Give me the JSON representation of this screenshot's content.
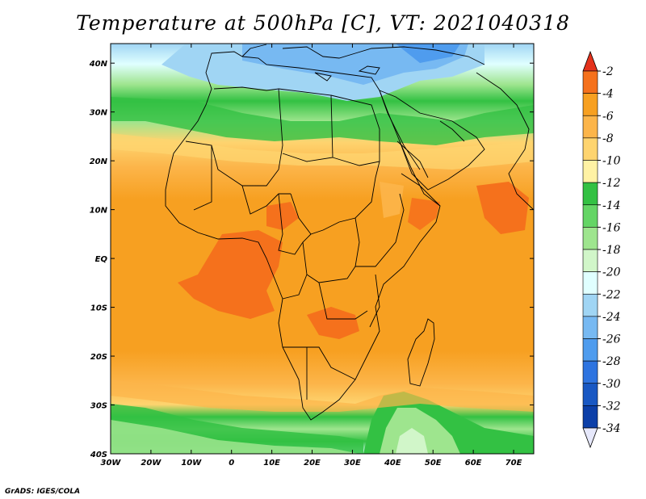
{
  "title": "Temperature at 500hPa [C], VT: 2021040318",
  "credit": "GrADS: IGES/COLA",
  "map": {
    "lon_ticks": [
      "30W",
      "20W",
      "10W",
      "0",
      "10E",
      "20E",
      "30E",
      "40E",
      "50E",
      "60E",
      "70E"
    ],
    "lat_ticks": [
      "40N",
      "30N",
      "20N",
      "10N",
      "EQ",
      "10S",
      "20S",
      "30S",
      "40S"
    ],
    "lon_range": [
      -30,
      75
    ],
    "lat_range": [
      -40,
      44
    ]
  },
  "colorbar": {
    "labels": [
      "-2",
      "-4",
      "-6",
      "-8",
      "-10",
      "-12",
      "-14",
      "-16",
      "-18",
      "-20",
      "-22",
      "-24",
      "-26",
      "-28",
      "-30",
      "-32",
      "-34"
    ],
    "colors": [
      "#e4321c",
      "#f5711c",
      "#f7a021",
      "#fcb54a",
      "#fed46f",
      "#fff2a4",
      "#33c143",
      "#64d565",
      "#9ee58e",
      "#d1f6c9",
      "#e0ffff",
      "#a0d5f4",
      "#77b9f2",
      "#4f9cee",
      "#2e74e0",
      "#1958c3",
      "#0c3fa8",
      "#0a2272",
      "#e6e8fb"
    ]
  }
}
